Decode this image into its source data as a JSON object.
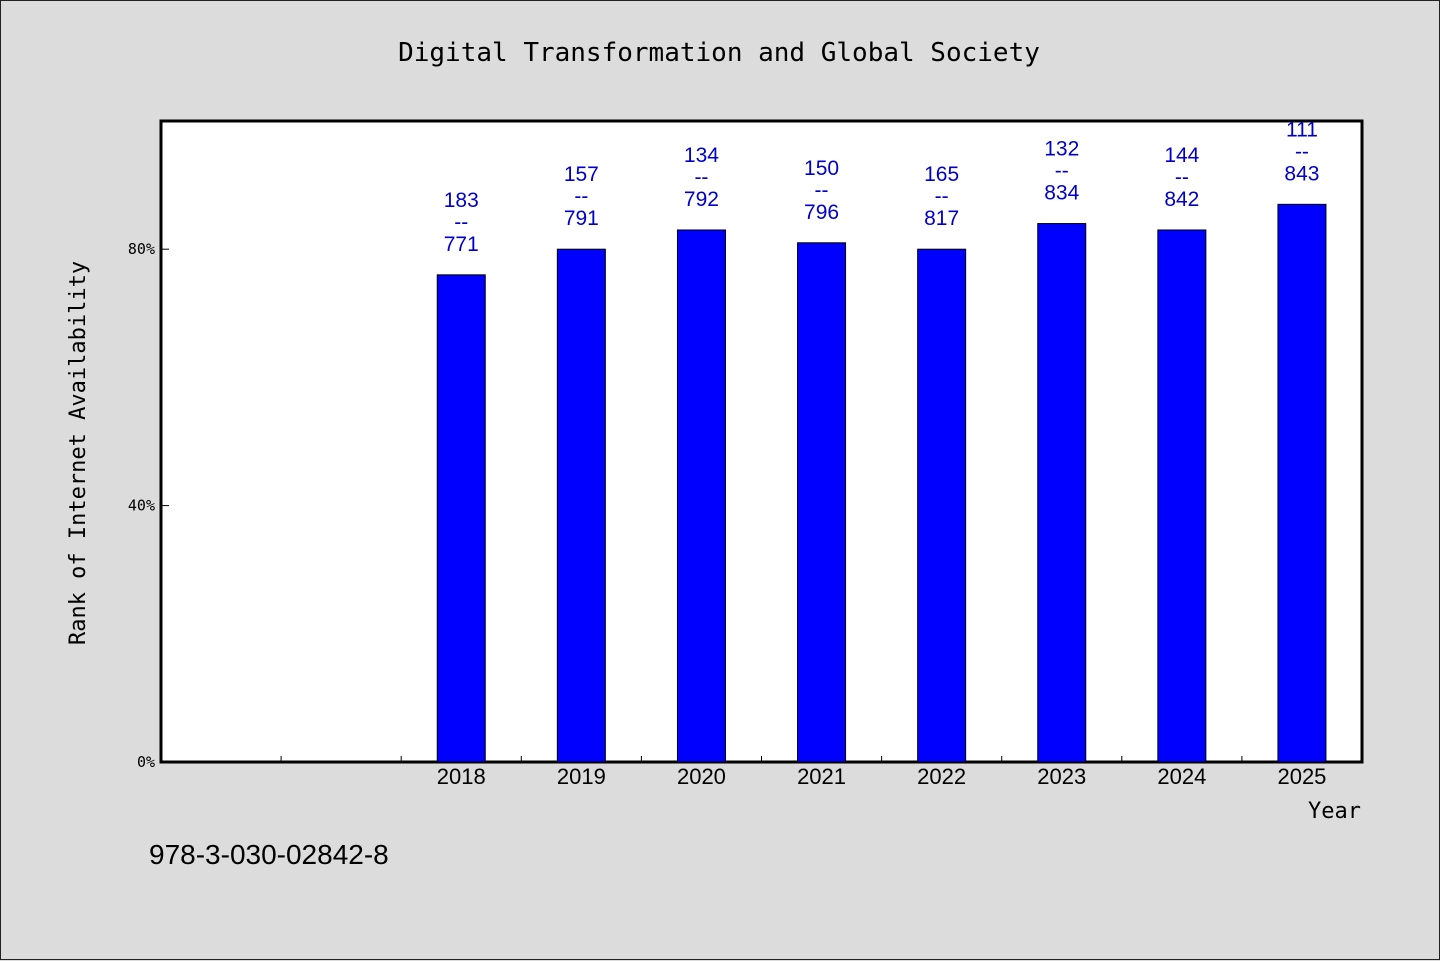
{
  "footer": {
    "isbn": "978-3-030-02842-8"
  },
  "colors": {
    "bar": "#0000ff",
    "label": "#0000cc",
    "background": "#dcdcdc",
    "plot_area": "#ffffff"
  },
  "chart_data": {
    "type": "bar",
    "title": "Digital Transformation and Global Society",
    "xlabel": "Year",
    "ylabel": "Rank of Internet Availability",
    "categories": [
      "2018",
      "2019",
      "2020",
      "2021",
      "2022",
      "2023",
      "2024",
      "2025"
    ],
    "values": [
      76,
      80,
      83,
      81,
      80,
      84,
      83,
      87
    ],
    "value_unit": "%",
    "data_labels": [
      [
        "183",
        "--",
        "771"
      ],
      [
        "157",
        "--",
        "791"
      ],
      [
        "134",
        "--",
        "792"
      ],
      [
        "150",
        "--",
        "796"
      ],
      [
        "165",
        "--",
        "817"
      ],
      [
        "132",
        "--",
        "834"
      ],
      [
        "144",
        "--",
        "842"
      ],
      [
        "111",
        "--",
        "843"
      ]
    ],
    "yticks": [
      0,
      40,
      80
    ],
    "ytick_labels": [
      "0%",
      "40%",
      "80%"
    ],
    "ylim": [
      0,
      100
    ],
    "leading_empty_slots": 2,
    "grid": false,
    "legend": "none"
  }
}
